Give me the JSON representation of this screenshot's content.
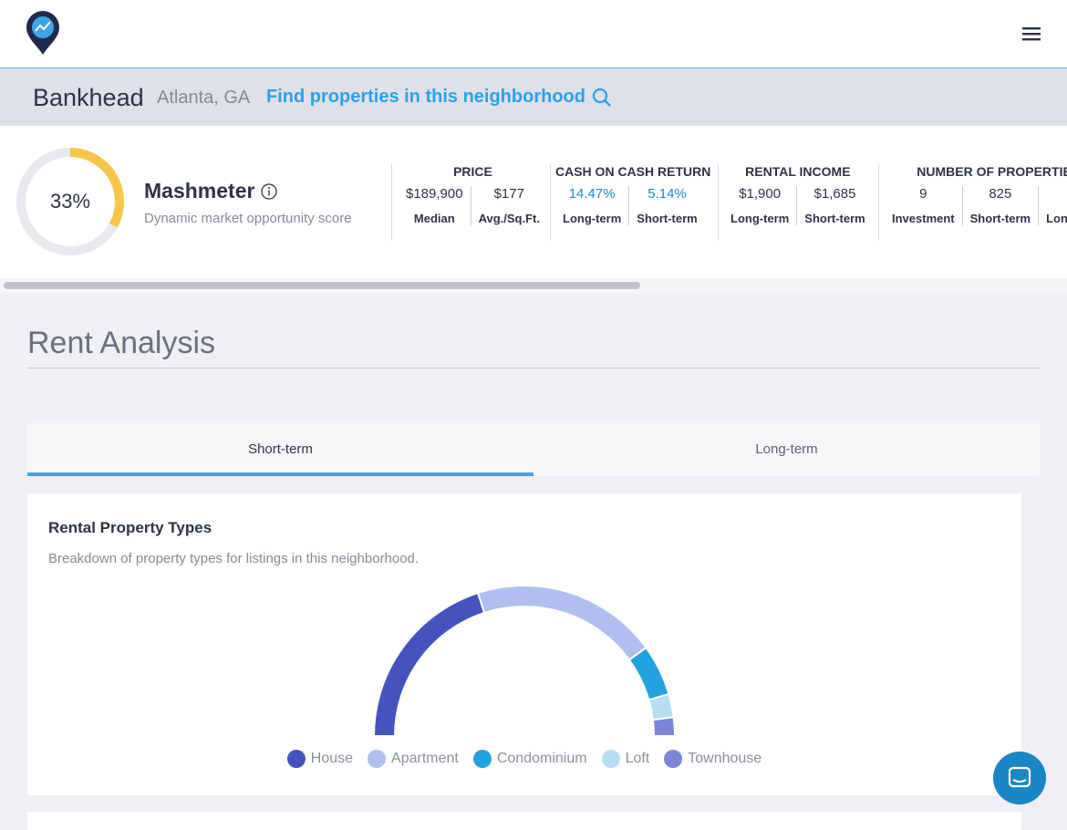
{
  "header": {
    "neighborhood": "Bankhead",
    "city": "Atlanta, GA",
    "link": "Find properties in this neighborhood"
  },
  "mashmeter": {
    "score": {
      "value": 33,
      "label": "33%"
    },
    "title": "Mashmeter",
    "subtitle": "Dynamic market opportunity score"
  },
  "metrics": [
    {
      "title": "PRICE",
      "items": [
        {
          "value": "$189,900",
          "label": "Median"
        },
        {
          "value": "$177",
          "label": "Avg./Sq.Ft."
        }
      ]
    },
    {
      "title": "CASH ON CASH RETURN",
      "items": [
        {
          "value": "14.47%",
          "label": "Long-term"
        },
        {
          "value": "5.14%",
          "label": "Short-term"
        }
      ]
    },
    {
      "title": "RENTAL INCOME",
      "items": [
        {
          "value": "$1,900",
          "label": "Long-term"
        },
        {
          "value": "$1,685",
          "label": "Short-term"
        }
      ]
    },
    {
      "title": "NUMBER OF PROPERTIES",
      "items": [
        {
          "value": "9",
          "label": "Investment"
        },
        {
          "value": "825",
          "label": "Short-term"
        },
        {
          "label": "Long-term"
        }
      ]
    }
  ],
  "section": {
    "title": "Rent Analysis",
    "tabs": [
      "Short-term",
      "Long-term"
    ]
  },
  "card": {
    "title": "Rental Property Types",
    "description": "Breakdown of property types for listings in this neighborhood."
  },
  "chart_data": {
    "type": "semi-donut",
    "categories": [
      "House",
      "Apartment",
      "Condominium",
      "Loft",
      "Townhouse"
    ],
    "values": [
      40,
      40,
      11,
      5,
      4
    ],
    "colors": [
      "#4453bd",
      "#b1bff1",
      "#23a2e0",
      "#b5def3",
      "#7b86d6"
    ]
  }
}
